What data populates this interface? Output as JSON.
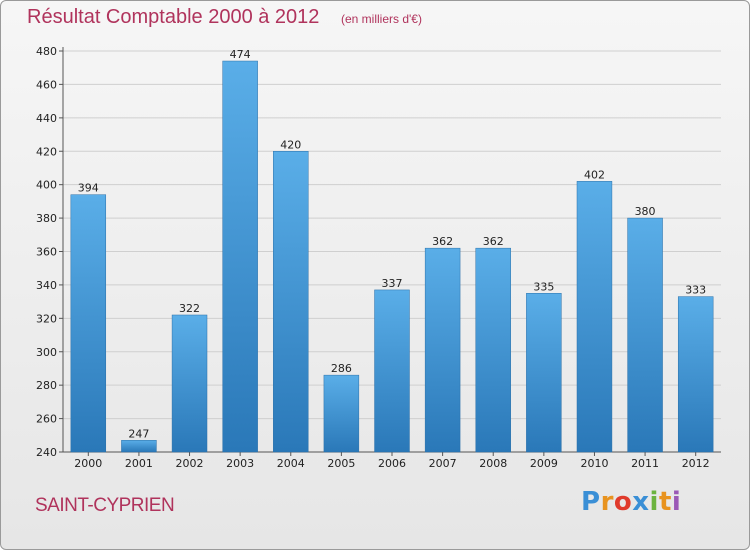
{
  "chart_data": {
    "type": "bar",
    "title": "Résultat Comptable 2000 à 2012",
    "unit_note": "(en milliers d'€)",
    "categories": [
      "2000",
      "2001",
      "2002",
      "2003",
      "2004",
      "2005",
      "2006",
      "2007",
      "2008",
      "2009",
      "2010",
      "2011",
      "2012"
    ],
    "values": [
      394,
      247,
      322,
      474,
      420,
      286,
      337,
      362,
      362,
      335,
      402,
      380,
      333
    ],
    "ylim": [
      240,
      480
    ],
    "yticks": [
      240,
      260,
      280,
      300,
      320,
      340,
      360,
      380,
      400,
      420,
      440,
      460,
      480
    ],
    "grid": true,
    "bar_color_top": "#5aaee8",
    "bar_color_bottom": "#2a78b8"
  },
  "footer": {
    "place": "SAINT-CYPRIEN",
    "logo_letters": [
      "P",
      "r",
      "o",
      "x",
      "i",
      "t",
      "i"
    ],
    "logo_colors": [
      "#3a8fd6",
      "#e8931f",
      "#e03b2c",
      "#3a8fd6",
      "#6cb33f",
      "#e8931f",
      "#9b59b6"
    ]
  },
  "colors": {
    "accent": "#b0335c"
  }
}
